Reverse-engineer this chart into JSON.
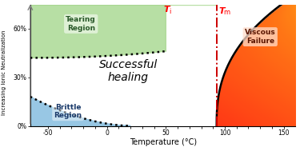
{
  "xlim": [
    -65,
    160
  ],
  "ylim": [
    0,
    75
  ],
  "xticks": [
    -50,
    -40,
    -30,
    -20,
    -10,
    0,
    10,
    20,
    30,
    40,
    50,
    60,
    70,
    80,
    90,
    100,
    110,
    120,
    130,
    140,
    150
  ],
  "ytick_labels": [
    "0%",
    "30%",
    "60%"
  ],
  "ytick_positions": [
    0,
    30,
    60
  ],
  "xlabel": "Temperature (°C)",
  "ylabel": "Increasing Ionic Neutralization",
  "title_label": "Successful\nhealing",
  "tearing_label": "Tearing\nRegion",
  "brittle_label": "Brittle\nRegion",
  "viscous_label": "Viscous\nFailure",
  "Ti_label": "T",
  "Ti_sub": "i",
  "Tm_label": "T",
  "Tm_sub": "m",
  "Tm_x": 93,
  "bg_color": "#ffffff"
}
